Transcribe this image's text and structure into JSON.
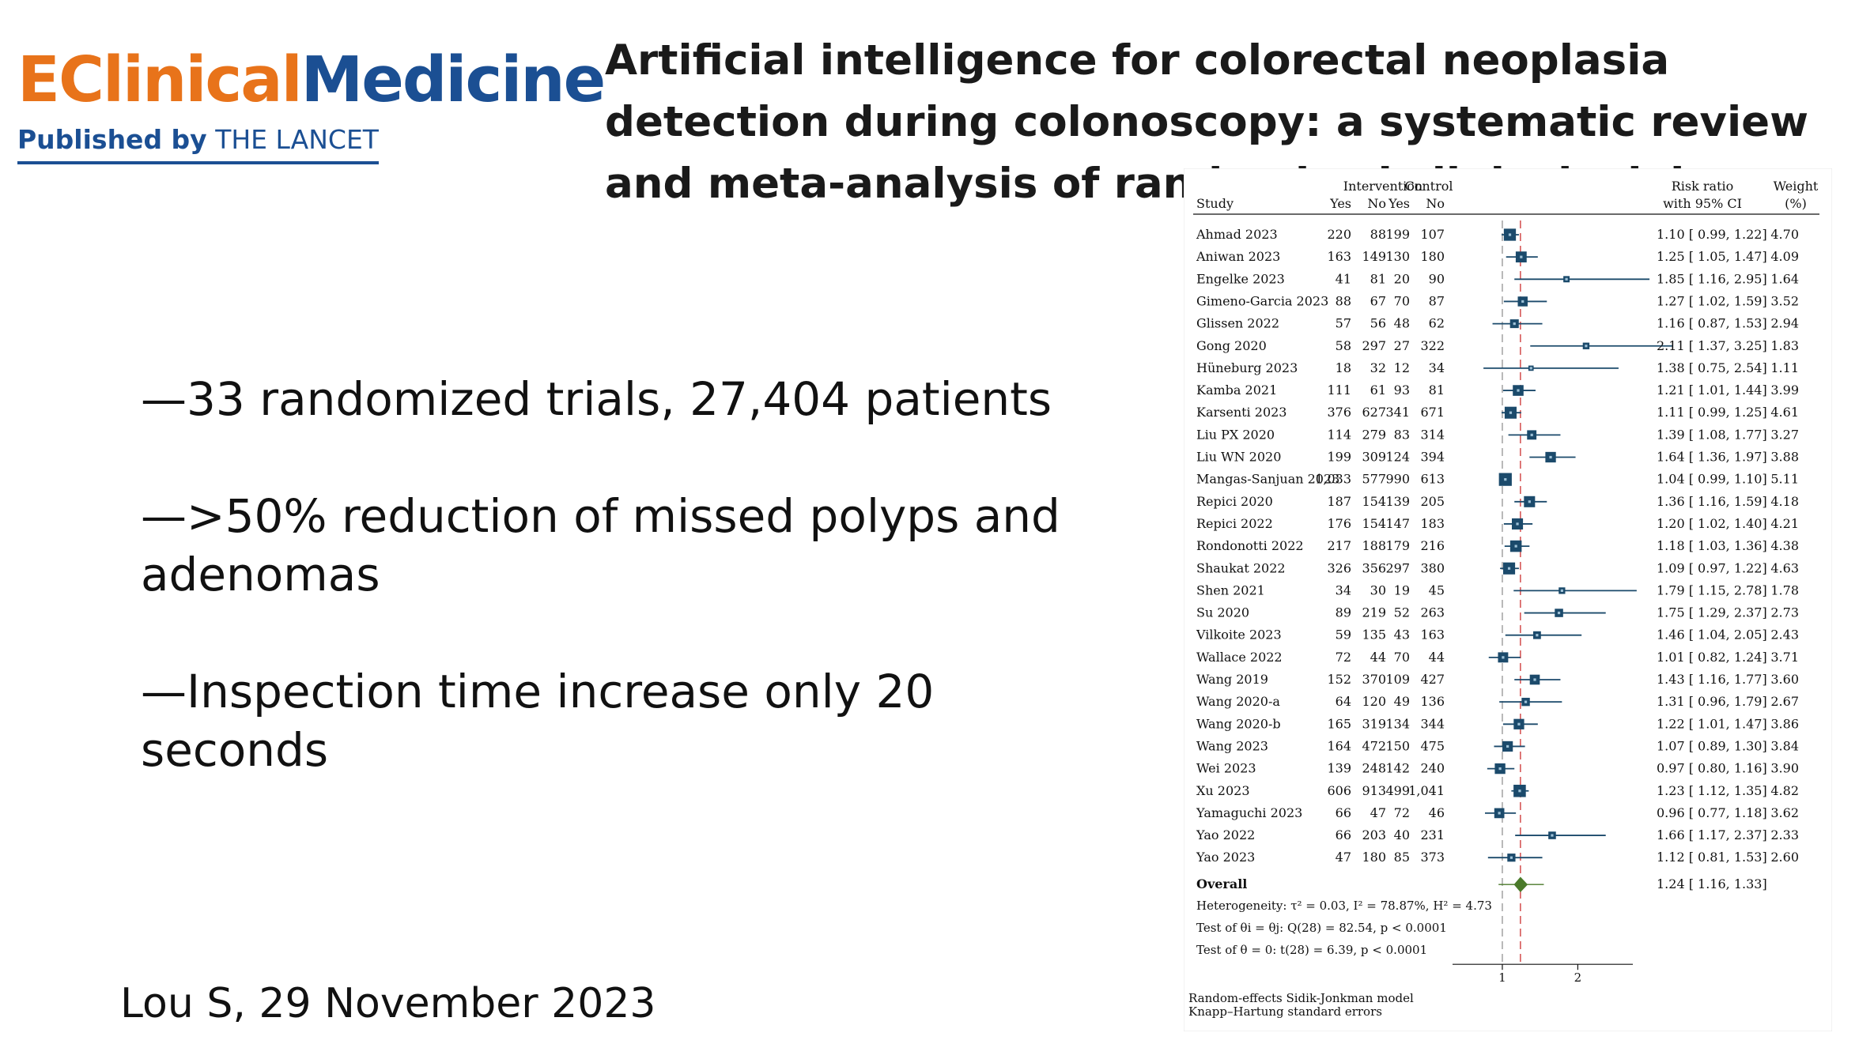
{
  "logo": {
    "brand_e": "E",
    "brand_clinical": "Clinical",
    "brand_medicine": "Medicine",
    "published_by": "Published by",
    "lancet": "THE LANCET"
  },
  "title": "Artificial intelligence for colorectal neoplasia detection during colonoscopy: a systematic review and meta-analysis of randomized clinical trials",
  "bullets": [
    "—33 randomized trials, 27,404 patients",
    "—>50% reduction of missed polyps and adenomas",
    "—Inspection time increase only 20 seconds"
  ],
  "citation": "Lou S, 29 November 2023",
  "colors": {
    "orange": "#e8731a",
    "navy": "#1b4f93",
    "marker": "#1b4a6b",
    "diamond": "#4a7a2a",
    "ref_line": "#d04040"
  },
  "chart_data": {
    "type": "forest",
    "headers": {
      "study": "Study",
      "intervention": "Intervention",
      "control": "Control",
      "yes": "Yes",
      "no": "No",
      "rr1": "Risk ratio",
      "rr2": "with 95% CI",
      "w1": "Weight",
      "w2": "(%)"
    },
    "xaxis": {
      "range": [
        0.55,
        2.75
      ],
      "ticks": [
        1,
        2
      ],
      "tick_labels": [
        "1",
        "2"
      ]
    },
    "studies": [
      {
        "name": "Ahmad 2023",
        "iy": "220",
        "in": "88",
        "cy": "199",
        "cn": "107",
        "rr": 1.1,
        "lo": 0.99,
        "hi": 1.22,
        "ci": "1.10 [ 0.99,  1.22]",
        "w": 4.7,
        "wl": "4.70"
      },
      {
        "name": "Aniwan 2023",
        "iy": "163",
        "in": "149",
        "cy": "130",
        "cn": "180",
        "rr": 1.25,
        "lo": 1.05,
        "hi": 1.47,
        "ci": "1.25 [ 1.05,  1.47]",
        "w": 4.09,
        "wl": "4.09"
      },
      {
        "name": "Engelke 2023",
        "iy": "41",
        "in": "81",
        "cy": "20",
        "cn": "90",
        "rr": 1.85,
        "lo": 1.16,
        "hi": 2.95,
        "ci": "1.85 [ 1.16,  2.95]",
        "w": 1.64,
        "wl": "1.64"
      },
      {
        "name": "Gimeno-Garcia 2023",
        "iy": "88",
        "in": "67",
        "cy": "70",
        "cn": "87",
        "rr": 1.27,
        "lo": 1.02,
        "hi": 1.59,
        "ci": "1.27 [ 1.02,  1.59]",
        "w": 3.52,
        "wl": "3.52"
      },
      {
        "name": "Glissen 2022",
        "iy": "57",
        "in": "56",
        "cy": "48",
        "cn": "62",
        "rr": 1.16,
        "lo": 0.87,
        "hi": 1.53,
        "ci": "1.16 [ 0.87,  1.53]",
        "w": 2.94,
        "wl": "2.94"
      },
      {
        "name": "Gong 2020",
        "iy": "58",
        "in": "297",
        "cy": "27",
        "cn": "322",
        "rr": 2.11,
        "lo": 1.37,
        "hi": 3.25,
        "ci": "2.11 [ 1.37,  3.25]",
        "w": 1.83,
        "wl": "1.83"
      },
      {
        "name": "Hüneburg 2023",
        "iy": "18",
        "in": "32",
        "cy": "12",
        "cn": "34",
        "rr": 1.38,
        "lo": 0.75,
        "hi": 2.54,
        "ci": "1.38 [ 0.75,  2.54]",
        "w": 1.11,
        "wl": "1.11"
      },
      {
        "name": "Kamba 2021",
        "iy": "111",
        "in": "61",
        "cy": "93",
        "cn": "81",
        "rr": 1.21,
        "lo": 1.01,
        "hi": 1.44,
        "ci": "1.21 [ 1.01,  1.44]",
        "w": 3.99,
        "wl": "3.99"
      },
      {
        "name": "Karsenti 2023",
        "iy": "376",
        "in": "627",
        "cy": "341",
        "cn": "671",
        "rr": 1.11,
        "lo": 0.99,
        "hi": 1.25,
        "ci": "1.11 [ 0.99,  1.25]",
        "w": 4.61,
        "wl": "4.61"
      },
      {
        "name": "Liu PX 2020",
        "iy": "114",
        "in": "279",
        "cy": "83",
        "cn": "314",
        "rr": 1.39,
        "lo": 1.08,
        "hi": 1.77,
        "ci": "1.39 [ 1.08,  1.77]",
        "w": 3.27,
        "wl": "3.27"
      },
      {
        "name": "Liu WN 2020",
        "iy": "199",
        "in": "309",
        "cy": "124",
        "cn": "394",
        "rr": 1.64,
        "lo": 1.36,
        "hi": 1.97,
        "ci": "1.64 [ 1.36,  1.97]",
        "w": 3.88,
        "wl": "3.88"
      },
      {
        "name": "Mangas-Sanjuan 2023",
        "iy": "1,033",
        "in": "577",
        "cy": "990",
        "cn": "613",
        "rr": 1.04,
        "lo": 0.99,
        "hi": 1.1,
        "ci": "1.04 [ 0.99,  1.10]",
        "w": 5.11,
        "wl": "5.11"
      },
      {
        "name": "Repici 2020",
        "iy": "187",
        "in": "154",
        "cy": "139",
        "cn": "205",
        "rr": 1.36,
        "lo": 1.16,
        "hi": 1.59,
        "ci": "1.36 [ 1.16,  1.59]",
        "w": 4.18,
        "wl": "4.18"
      },
      {
        "name": "Repici 2022",
        "iy": "176",
        "in": "154",
        "cy": "147",
        "cn": "183",
        "rr": 1.2,
        "lo": 1.02,
        "hi": 1.4,
        "ci": "1.20 [ 1.02,  1.40]",
        "w": 4.21,
        "wl": "4.21"
      },
      {
        "name": "Rondonotti 2022",
        "iy": "217",
        "in": "188",
        "cy": "179",
        "cn": "216",
        "rr": 1.18,
        "lo": 1.03,
        "hi": 1.36,
        "ci": "1.18 [ 1.03,  1.36]",
        "w": 4.38,
        "wl": "4.38"
      },
      {
        "name": "Shaukat 2022",
        "iy": "326",
        "in": "356",
        "cy": "297",
        "cn": "380",
        "rr": 1.09,
        "lo": 0.97,
        "hi": 1.22,
        "ci": "1.09 [ 0.97,  1.22]",
        "w": 4.63,
        "wl": "4.63"
      },
      {
        "name": "Shen 2021",
        "iy": "34",
        "in": "30",
        "cy": "19",
        "cn": "45",
        "rr": 1.79,
        "lo": 1.15,
        "hi": 2.78,
        "ci": "1.79 [ 1.15,  2.78]",
        "w": 1.78,
        "wl": "1.78"
      },
      {
        "name": "Su 2020",
        "iy": "89",
        "in": "219",
        "cy": "52",
        "cn": "263",
        "rr": 1.75,
        "lo": 1.29,
        "hi": 2.37,
        "ci": "1.75 [ 1.29,  2.37]",
        "w": 2.73,
        "wl": "2.73"
      },
      {
        "name": "Vilkoite 2023",
        "iy": "59",
        "in": "135",
        "cy": "43",
        "cn": "163",
        "rr": 1.46,
        "lo": 1.04,
        "hi": 2.05,
        "ci": "1.46 [ 1.04,  2.05]",
        "w": 2.43,
        "wl": "2.43"
      },
      {
        "name": "Wallace 2022",
        "iy": "72",
        "in": "44",
        "cy": "70",
        "cn": "44",
        "rr": 1.01,
        "lo": 0.82,
        "hi": 1.24,
        "ci": "1.01 [ 0.82,  1.24]",
        "w": 3.71,
        "wl": "3.71"
      },
      {
        "name": "Wang 2019",
        "iy": "152",
        "in": "370",
        "cy": "109",
        "cn": "427",
        "rr": 1.43,
        "lo": 1.16,
        "hi": 1.77,
        "ci": "1.43 [ 1.16,  1.77]",
        "w": 3.6,
        "wl": "3.60"
      },
      {
        "name": "Wang 2020-a",
        "iy": "64",
        "in": "120",
        "cy": "49",
        "cn": "136",
        "rr": 1.31,
        "lo": 0.96,
        "hi": 1.79,
        "ci": "1.31 [ 0.96,  1.79]",
        "w": 2.67,
        "wl": "2.67"
      },
      {
        "name": "Wang 2020-b",
        "iy": "165",
        "in": "319",
        "cy": "134",
        "cn": "344",
        "rr": 1.22,
        "lo": 1.01,
        "hi": 1.47,
        "ci": "1.22 [ 1.01,  1.47]",
        "w": 3.86,
        "wl": "3.86"
      },
      {
        "name": "Wang 2023",
        "iy": "164",
        "in": "472",
        "cy": "150",
        "cn": "475",
        "rr": 1.07,
        "lo": 0.89,
        "hi": 1.3,
        "ci": "1.07 [ 0.89,  1.30]",
        "w": 3.84,
        "wl": "3.84"
      },
      {
        "name": "Wei 2023",
        "iy": "139",
        "in": "248",
        "cy": "142",
        "cn": "240",
        "rr": 0.97,
        "lo": 0.8,
        "hi": 1.16,
        "ci": "0.97 [ 0.80,  1.16]",
        "w": 3.9,
        "wl": "3.90"
      },
      {
        "name": "Xu 2023",
        "iy": "606",
        "in": "913",
        "cy": "499",
        "cn": "1,041",
        "rr": 1.23,
        "lo": 1.12,
        "hi": 1.35,
        "ci": "1.23 [ 1.12,  1.35]",
        "w": 4.82,
        "wl": "4.82"
      },
      {
        "name": "Yamaguchi 2023",
        "iy": "66",
        "in": "47",
        "cy": "72",
        "cn": "46",
        "rr": 0.96,
        "lo": 0.77,
        "hi": 1.18,
        "ci": "0.96 [ 0.77,  1.18]",
        "w": 3.62,
        "wl": "3.62"
      },
      {
        "name": "Yao 2022",
        "iy": "66",
        "in": "203",
        "cy": "40",
        "cn": "231",
        "rr": 1.66,
        "lo": 1.17,
        "hi": 2.37,
        "ci": "1.66 [ 1.17,  2.37]",
        "w": 2.33,
        "wl": "2.33"
      },
      {
        "name": "Yao 2023",
        "iy": "47",
        "in": "180",
        "cy": "85",
        "cn": "373",
        "rr": 1.12,
        "lo": 0.81,
        "hi": 1.53,
        "ci": "1.12 [ 0.81,  1.53]",
        "w": 2.6,
        "wl": "2.60"
      }
    ],
    "overall": {
      "label": "Overall",
      "rr": 1.24,
      "lo": 1.16,
      "hi": 1.33,
      "ci": "1.24 [ 1.16,  1.33]"
    },
    "stats": [
      "Heterogeneity: τ² = 0.03, I² = 78.87%, H² = 4.73",
      "Test of θi = θj: Q(28) = 82.54, p < 0.0001",
      "Test of θ = 0: t(28) = 6.39, p < 0.0001"
    ],
    "footnotes": [
      "Random-effects Sidik-Jonkman model",
      "Knapp–Hartung standard errors"
    ]
  }
}
